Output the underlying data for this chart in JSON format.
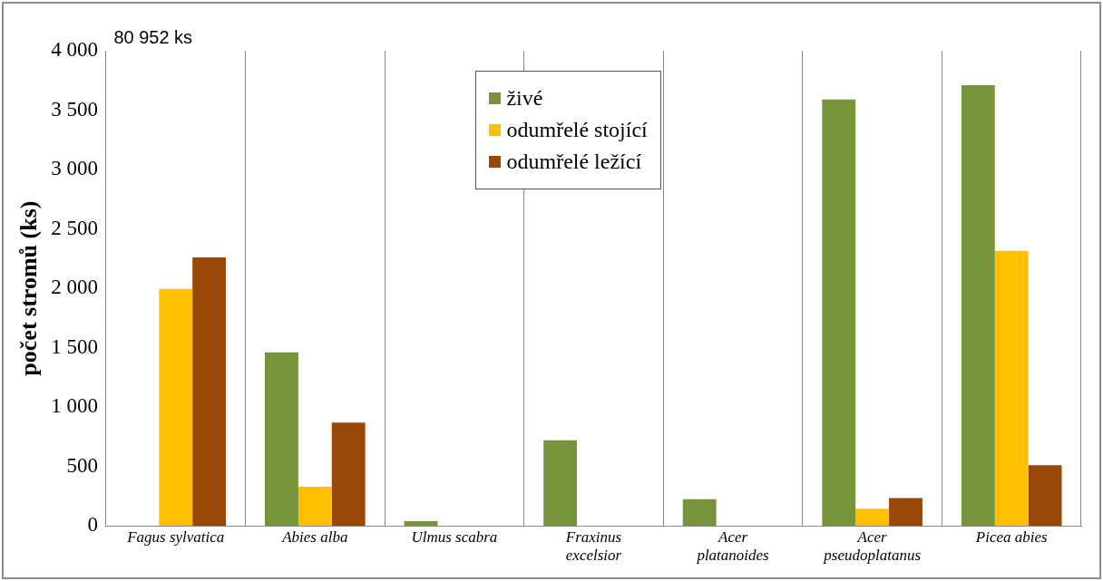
{
  "chart_data": {
    "type": "bar",
    "ylabel": "počet stromů (ks)",
    "categories": [
      "Fagus sylvatica",
      "Abies alba",
      "Ulmus scabra",
      "Fraxinus\nexcelsior",
      "Acer\nplatanoides",
      "Acer\npseudoplatanus",
      "Picea abies"
    ],
    "series": [
      {
        "name": "živé",
        "color": "#77933c",
        "values": [
          null,
          1460,
          40,
          720,
          225,
          3590,
          3710
        ]
      },
      {
        "name": "odumřelé stojící",
        "color": "#ffc000",
        "values": [
          1995,
          330,
          0,
          0,
          0,
          145,
          2315
        ]
      },
      {
        "name": "odumřelé ležící",
        "color": "#984807",
        "values": [
          2260,
          870,
          0,
          0,
          0,
          235,
          510
        ]
      }
    ],
    "ylim": [
      0,
      4000
    ],
    "yticks": [
      {
        "value": 0,
        "label": "0"
      },
      {
        "value": 500,
        "label": "500"
      },
      {
        "value": 1000,
        "label": "1 000"
      },
      {
        "value": 1500,
        "label": "1 500"
      },
      {
        "value": 2000,
        "label": "2 000"
      },
      {
        "value": 2500,
        "label": "2 500"
      },
      {
        "value": 3000,
        "label": "3 000"
      },
      {
        "value": 3500,
        "label": "3 500"
      },
      {
        "value": 4000,
        "label": "4 000"
      }
    ],
    "annotations": [
      "80 952 ks"
    ],
    "grid": "x",
    "legend": "top"
  }
}
